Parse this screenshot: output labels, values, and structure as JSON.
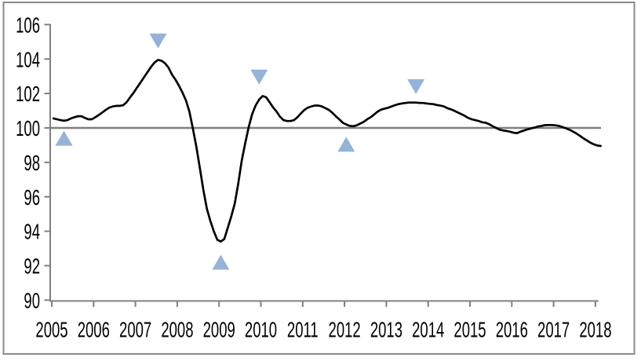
{
  "chart": {
    "background": "#ffffff",
    "frame_color": "#8a8a8a"
  },
  "chart_data": {
    "type": "line",
    "title": "",
    "xlabel": "",
    "ylabel": "",
    "x_tick_labels": [
      "2005",
      "2006",
      "2007",
      "2008",
      "2009",
      "2010",
      "2011",
      "2012",
      "2013",
      "2014",
      "2015",
      "2016",
      "2017",
      "2018"
    ],
    "y_tick_labels": [
      "90",
      "92",
      "94",
      "96",
      "98",
      "100",
      "102",
      "104",
      "106"
    ],
    "ylim": [
      90,
      106
    ],
    "baseline_value": 100,
    "grid": false,
    "legend": "none",
    "axis_color": "#808080",
    "baseline_color": "#7f7f7f",
    "tick_label_color": "#000000",
    "line_color": "#000000",
    "marker_color": "#95B3D7",
    "series": [
      {
        "name": "composite-index",
        "color": "#000000",
        "frequency": "monthly",
        "start_month": "2005-01",
        "values": [
          100.55,
          100.5,
          100.45,
          100.42,
          100.45,
          100.55,
          100.62,
          100.68,
          100.68,
          100.58,
          100.5,
          100.5,
          100.62,
          100.75,
          100.9,
          101.05,
          101.18,
          101.25,
          101.28,
          101.28,
          101.32,
          101.5,
          101.78,
          102.05,
          102.35,
          102.65,
          102.95,
          103.25,
          103.55,
          103.8,
          103.95,
          103.9,
          103.75,
          103.5,
          103.1,
          102.8,
          102.45,
          102.05,
          101.6,
          100.95,
          99.95,
          98.9,
          97.65,
          96.4,
          95.3,
          94.6,
          94.0,
          93.5,
          93.4,
          93.55,
          94.2,
          94.85,
          95.6,
          96.75,
          98.1,
          99.1,
          100.05,
          100.8,
          101.3,
          101.65,
          101.85,
          101.78,
          101.5,
          101.2,
          100.95,
          100.65,
          100.45,
          100.4,
          100.4,
          100.45,
          100.62,
          100.85,
          101.05,
          101.18,
          101.25,
          101.3,
          101.3,
          101.25,
          101.15,
          101.05,
          100.88,
          100.68,
          100.5,
          100.3,
          100.2,
          100.12,
          100.1,
          100.15,
          100.25,
          100.35,
          100.5,
          100.62,
          100.78,
          100.95,
          101.06,
          101.12,
          101.17,
          101.25,
          101.32,
          101.38,
          101.42,
          101.45,
          101.47,
          101.47,
          101.47,
          101.45,
          101.45,
          101.42,
          101.4,
          101.38,
          101.33,
          101.3,
          101.25,
          101.15,
          101.08,
          101.0,
          100.9,
          100.8,
          100.7,
          100.58,
          100.5,
          100.45,
          100.4,
          100.33,
          100.3,
          100.22,
          100.1,
          100.0,
          99.9,
          99.85,
          99.82,
          99.78,
          99.72,
          99.7,
          99.78,
          99.85,
          99.92,
          99.97,
          100.02,
          100.08,
          100.12,
          100.16,
          100.17,
          100.17,
          100.15,
          100.12,
          100.05,
          99.98,
          99.9,
          99.8,
          99.68,
          99.55,
          99.4,
          99.28,
          99.15,
          99.05,
          98.98,
          98.95
        ]
      }
    ],
    "turning_point_markers": [
      {
        "shape": "triangle-up",
        "month": "2005-04",
        "value": 99.4
      },
      {
        "shape": "triangle-down",
        "month": "2007-07",
        "value": 105.05
      },
      {
        "shape": "triangle-up",
        "month": "2009-01",
        "value": 92.2
      },
      {
        "shape": "triangle-down",
        "month": "2009-12",
        "value": 102.95
      },
      {
        "shape": "triangle-up",
        "month": "2012-01",
        "value": 99.05
      },
      {
        "shape": "triangle-down",
        "month": "2013-09",
        "value": 102.4
      }
    ]
  }
}
